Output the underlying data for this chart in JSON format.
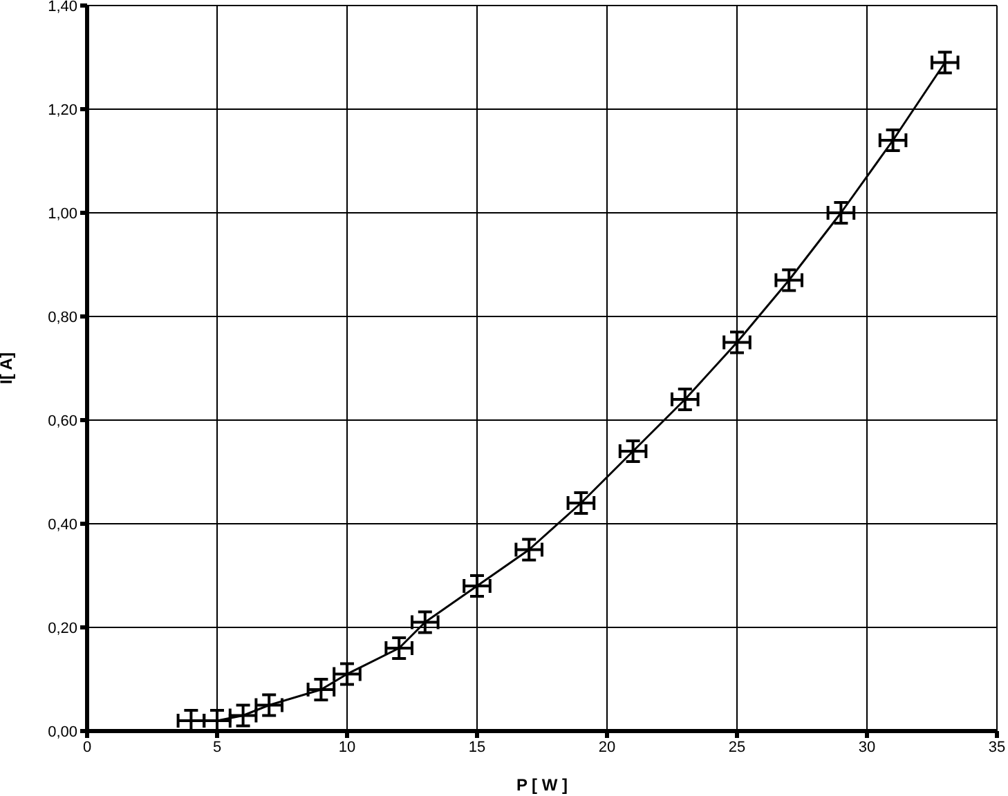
{
  "chart_data": {
    "type": "line",
    "xlabel": "P [ W ]",
    "ylabel": "I[ A]",
    "x": [
      4,
      5,
      6,
      7,
      9,
      10,
      12,
      13,
      15,
      17,
      19,
      21,
      23,
      25,
      27,
      29,
      31,
      33
    ],
    "series": [
      {
        "color": "#000000",
        "values": [
          0.02,
          0.02,
          0.03,
          0.05,
          0.08,
          0.11,
          0.16,
          0.21,
          0.28,
          0.35,
          0.44,
          0.54,
          0.64,
          0.75,
          0.87,
          1.0,
          1.14,
          1.29
        ],
        "errors": [
          0.02,
          0.02,
          0.02,
          0.02,
          0.02,
          0.02,
          0.02,
          0.02,
          0.02,
          0.02,
          0.02,
          0.02,
          0.02,
          0.02,
          0.02,
          0.02,
          0.02,
          0.02
        ],
        "xerrors": [
          0.5,
          0.5,
          0.5,
          0.5,
          0.5,
          0.5,
          0.5,
          0.5,
          0.5,
          0.5,
          0.5,
          0.5,
          0.5,
          0.5,
          0.5,
          0.5,
          0.5,
          0.5
        ]
      }
    ],
    "xlim": [
      0,
      35
    ],
    "xticks": [
      0,
      5,
      10,
      15,
      20,
      25,
      30,
      35
    ],
    "ylim": [
      0,
      1.4
    ],
    "yticks": [
      {
        "value": 0,
        "label": "0,00"
      },
      {
        "value": 0.2,
        "label": "0,20"
      },
      {
        "value": 0.4,
        "label": "0,40"
      },
      {
        "value": 0.6,
        "label": "0,60"
      },
      {
        "value": 0.8,
        "label": "0,80"
      },
      {
        "value": 1.0,
        "label": "1,00"
      },
      {
        "value": 1.2,
        "label": "1,20"
      },
      {
        "value": 1.4,
        "label": "1,40"
      }
    ],
    "grid": true,
    "marker": "none",
    "line_style": "solid"
  }
}
